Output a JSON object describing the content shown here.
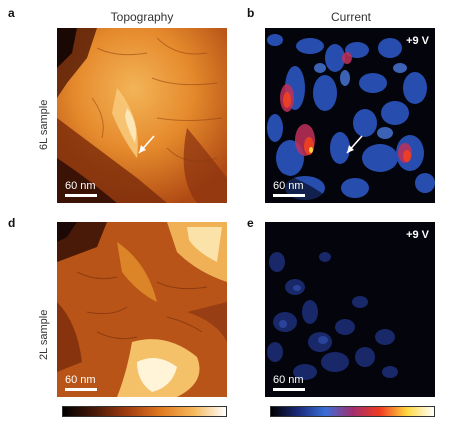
{
  "panels": {
    "a": {
      "letter": "a",
      "scale_label": "60 nm"
    },
    "b": {
      "letter": "b",
      "scale_label": "60 nm",
      "voltage": "+9 V"
    },
    "d": {
      "letter": "d",
      "scale_label": "60 nm"
    },
    "e": {
      "letter": "e",
      "scale_label": "60 nm",
      "voltage": "+9 V"
    }
  },
  "columns": {
    "topography": "Topography",
    "current": "Current"
  },
  "rows": {
    "top": "6L sample",
    "bottom": "2L sample"
  },
  "colors": {
    "topo_colormap": [
      "#000000",
      "#4a1a08",
      "#a33d10",
      "#e07a20",
      "#f5b85a",
      "#ffffff"
    ],
    "current_colormap": [
      "#000000",
      "#1a2a7a",
      "#3a6fd8",
      "#a03070",
      "#f03a20",
      "#ffd840",
      "#ffffff"
    ]
  }
}
